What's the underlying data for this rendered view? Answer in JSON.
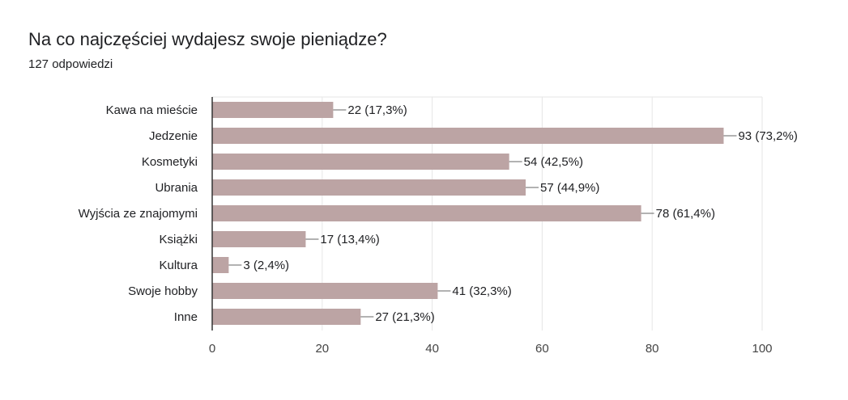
{
  "header": {
    "title": "Na co najczęściej wydajesz swoje pieniądze?",
    "response_count": "127 odpowiedzi"
  },
  "chart_data": {
    "type": "bar",
    "orientation": "horizontal",
    "categories": [
      "Kawa na mieście",
      "Jedzenie",
      "Kosmetyki",
      "Ubrania",
      "Wyjścia ze znajomymi",
      "Książki",
      "Kultura",
      "Swoje hobby",
      "Inne"
    ],
    "values": [
      22,
      93,
      54,
      57,
      78,
      17,
      3,
      41,
      27
    ],
    "data_labels": [
      "22 (17,3%)",
      "93 (73,2%)",
      "54 (42,5%)",
      "57 (44,9%)",
      "78 (61,4%)",
      "17 (13,4%)",
      "3 (2,4%)",
      "41 (32,3%)",
      "27 (21,3%)"
    ],
    "xlim": [
      0,
      100
    ],
    "x_ticks": [
      0,
      20,
      40,
      60,
      80,
      100
    ],
    "grid": true,
    "bar_color": "#bca4a4",
    "grid_color": "#e6e6e6",
    "axis_color": "#333333",
    "text_color": "#202124"
  }
}
